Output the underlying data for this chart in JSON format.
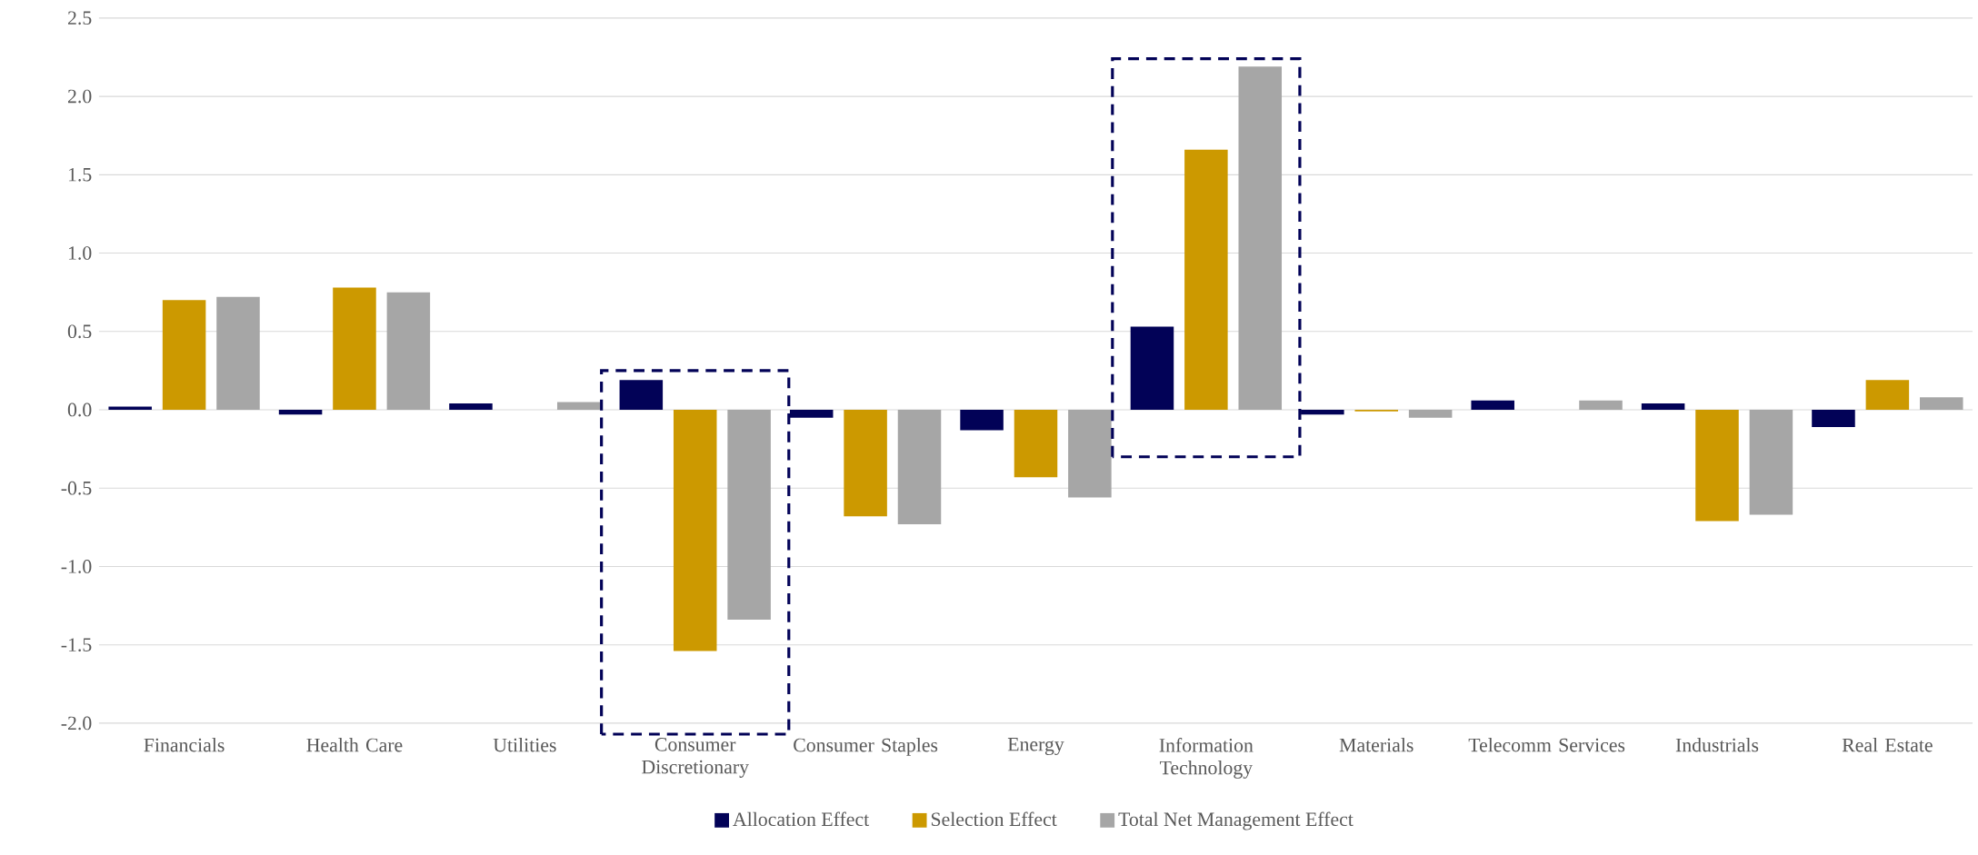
{
  "chart_data": {
    "type": "bar",
    "categories": [
      "Financials",
      "Health Care",
      "Utilities",
      "Consumer Discretionary",
      "Consumer Staples",
      "Energy",
      "Information Technology",
      "Materials",
      "Telecomm Services",
      "Industrials",
      "Real Estate"
    ],
    "series": [
      {
        "name": "Allocation Effect",
        "color": "#020257",
        "values": [
          0.02,
          -0.03,
          0.04,
          0.19,
          -0.05,
          -0.13,
          0.53,
          -0.03,
          0.06,
          0.04,
          -0.11
        ]
      },
      {
        "name": "Selection Effect",
        "color": "#cc9900",
        "values": [
          0.7,
          0.78,
          0.0,
          -1.54,
          -0.68,
          -0.43,
          1.66,
          -0.01,
          0.0,
          -0.71,
          0.19
        ]
      },
      {
        "name": "Total Net Management Effect",
        "color": "#a6a6a6",
        "values": [
          0.72,
          0.75,
          0.05,
          -1.34,
          -0.73,
          -0.56,
          2.19,
          -0.05,
          0.06,
          -0.67,
          0.08
        ]
      }
    ],
    "ylim": [
      -2.0,
      2.5
    ],
    "yticks": [
      {
        "value": -2.0,
        "label": "-2.0"
      },
      {
        "value": -1.5,
        "label": "-1.5"
      },
      {
        "value": -1.0,
        "label": "-1.0"
      },
      {
        "value": -0.5,
        "label": "-0.5"
      },
      {
        "value": 0.0,
        "label": "0.0"
      },
      {
        "value": 0.5,
        "label": "0.5"
      },
      {
        "value": 1.0,
        "label": "1.0"
      },
      {
        "value": 1.5,
        "label": "1.5"
      },
      {
        "value": 2.0,
        "label": "2.0"
      },
      {
        "value": 2.5,
        "label": "2.5"
      }
    ],
    "grid": "y",
    "legend": "bottom"
  }
}
